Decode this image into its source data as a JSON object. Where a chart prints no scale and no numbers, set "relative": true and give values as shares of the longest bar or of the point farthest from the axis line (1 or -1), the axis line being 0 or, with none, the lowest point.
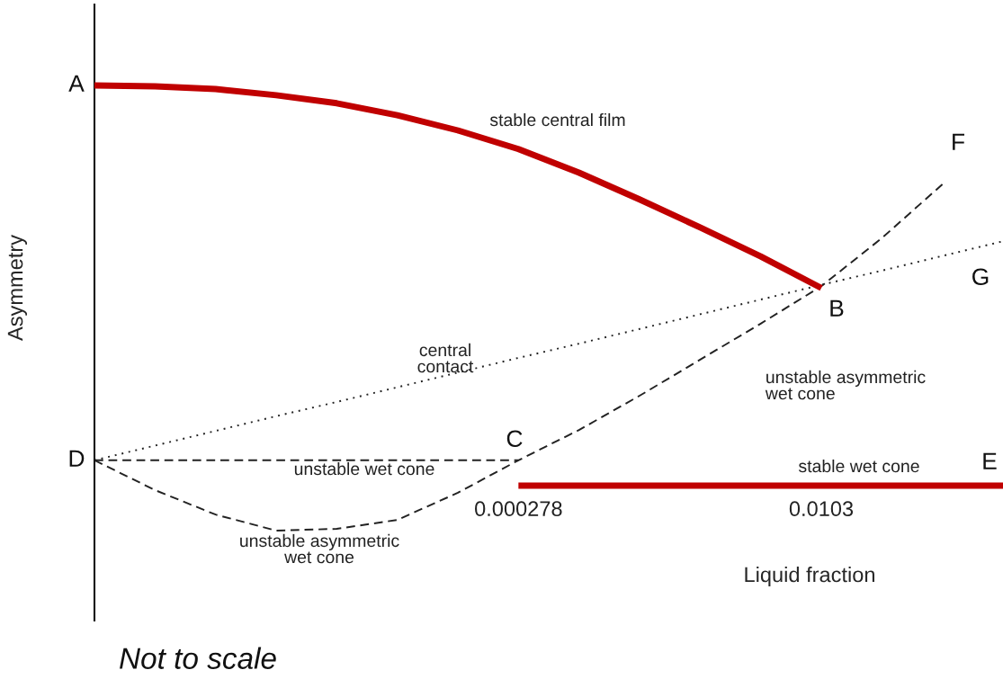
{
  "chart_data": {
    "type": "line",
    "relative": true,
    "xlabel": "Liquid fraction",
    "ylabel": "Asymmetry",
    "categories": [
      null,
      null,
      null,
      null,
      null,
      null,
      null,
      "0.000278",
      null,
      null,
      null,
      null,
      "0.0103",
      null,
      null,
      null
    ],
    "series": [
      {
        "name": "stable central film",
        "color": "#c00000",
        "line_style": "solid",
        "values": [
          1.0,
          0.998,
          0.992,
          0.978,
          0.96,
          0.933,
          0.899,
          0.857,
          0.804,
          0.744,
          0.681,
          0.616,
          0.545,
          null,
          null,
          null
        ]
      },
      {
        "name": "central contact",
        "color": "#222222",
        "line_style": "dotted",
        "values": [
          0.158,
          0.191,
          0.224,
          0.257,
          0.289,
          0.322,
          0.355,
          0.388,
          0.42,
          0.453,
          0.486,
          0.519,
          0.552,
          0.584,
          0.617,
          0.65
        ]
      },
      {
        "name": "unstable wet cone",
        "color": "#222222",
        "line_style": "dashed",
        "values": [
          0.158,
          0.158,
          0.158,
          0.158,
          0.158,
          0.158,
          0.158,
          0.158,
          null,
          null,
          null,
          null,
          null,
          null,
          null,
          null
        ]
      },
      {
        "name": "unstable asymmetric wet cone",
        "color": "#222222",
        "line_style": "dashed",
        "values": [
          0.158,
          0.091,
          0.036,
          0.0,
          0.004,
          0.024,
          0.085,
          0.158,
          0.226,
          0.303,
          0.384,
          0.465,
          0.549,
          0.657,
          0.778,
          null
        ]
      },
      {
        "name": "stable wet cone",
        "color": "#c00000",
        "line_style": "solid",
        "values": [
          null,
          null,
          null,
          null,
          null,
          null,
          null,
          0.101,
          0.101,
          0.101,
          0.101,
          0.101,
          0.101,
          0.101,
          0.101,
          0.101
        ]
      }
    ],
    "annotations": [
      "A",
      "B",
      "C",
      "D",
      "E",
      "F",
      "G",
      "Not to scale"
    ]
  }
}
